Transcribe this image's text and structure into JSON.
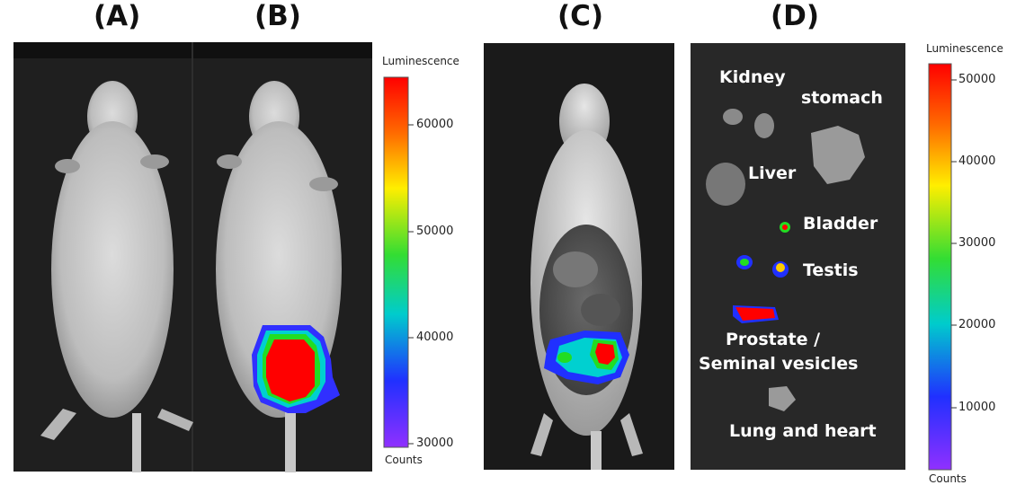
{
  "panels": {
    "a": {
      "label": "(A)"
    },
    "b": {
      "label": "(B)"
    },
    "c": {
      "label": "(C)"
    },
    "d": {
      "label": "(D)"
    }
  },
  "colorbar_b": {
    "title": "Luminescence",
    "unit": "Counts",
    "ticks": [
      "60000",
      "50000",
      "40000",
      "30000"
    ]
  },
  "colorbar_d": {
    "title": "Luminescence",
    "unit": "Counts",
    "ticks": [
      "50000",
      "40000",
      "30000",
      "20000",
      "10000"
    ]
  },
  "organs": {
    "kidney": "Kidney",
    "stomach": "stomach",
    "liver": "Liver",
    "bladder": "Bladder",
    "testis": "Testis",
    "prostate_line1": "Prostate /",
    "prostate_line2": "Seminal vesicles",
    "lung": "Lung and heart"
  },
  "colors": {
    "photo_bg": "#1b1b1b",
    "signal_high": "#ff0000",
    "signal_mid": "#00e000",
    "signal_low": "#3030ff"
  }
}
